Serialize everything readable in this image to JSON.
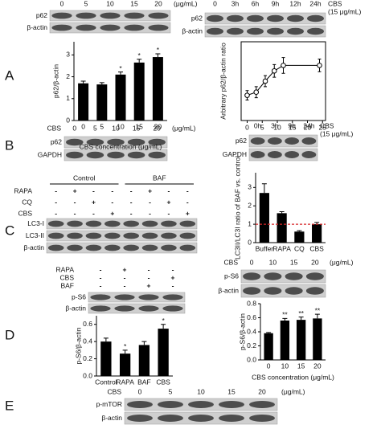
{
  "panel_labels": [
    "A",
    "B",
    "C",
    "D",
    "E"
  ],
  "blots": [
    {
      "lanes": [
        "0",
        "5",
        "10",
        "15",
        "20"
      ],
      "unit": [
        "(μg/mL)"
      ],
      "rows": [
        "p62",
        "β-actin"
      ]
    },
    {
      "lanes": [
        "0",
        "3h",
        "6h",
        "9h",
        "12h",
        "24h"
      ],
      "unit": [
        "CBS",
        "(15 μg/mL)"
      ],
      "rows": [
        "p62",
        "β-actin"
      ]
    },
    {
      "prefix": "CBS",
      "lanes": [
        "0",
        "5",
        "10",
        "15",
        "20"
      ],
      "unit": [
        "(μg/mL)"
      ],
      "rows": [
        "p62",
        "GAPDH"
      ]
    },
    {
      "lanes": [
        "0h",
        "3h",
        "9h",
        "24h"
      ],
      "unit": [
        "CBS",
        "(15 μg/mL)"
      ],
      "rows": [
        "p62",
        "GAPDH"
      ]
    },
    {
      "groups": [
        "Control",
        "BAF"
      ],
      "treatments": [
        {
          "label": "RAPA",
          "cells": [
            "-",
            "+",
            "-",
            "-",
            "-",
            "+",
            "-",
            "-"
          ]
        },
        {
          "label": "CQ",
          "cells": [
            "-",
            "-",
            "+",
            "-",
            "-",
            "-",
            "+",
            "-"
          ]
        },
        {
          "label": "CBS",
          "cells": [
            "-",
            "-",
            "-",
            "+",
            "-",
            "-",
            "-",
            "+"
          ]
        }
      ],
      "rows": [
        "LC3-I",
        "LC3-II",
        "β-actin"
      ]
    },
    {
      "treatments": [
        {
          "label": "RAPA",
          "cells": [
            "-",
            "+",
            "-",
            "-"
          ]
        },
        {
          "label": "CBS",
          "cells": [
            "-",
            "-",
            "-",
            "+"
          ]
        },
        {
          "label": "BAF",
          "cells": [
            "-",
            "-",
            "+",
            "-"
          ]
        }
      ],
      "rows": [
        "p-S6",
        "β-actin"
      ]
    },
    {
      "prefix": "CBS",
      "lanes": [
        "0",
        "10",
        "15",
        "20"
      ],
      "unit": [
        "(μg/mL)"
      ],
      "rows": [
        "p-S6",
        "β-actin"
      ]
    },
    {
      "prefix": "CBS",
      "lanes": [
        "0",
        "5",
        "10",
        "15",
        "20"
      ],
      "unit": [
        "(μg/mL)"
      ],
      "rows": [
        "p-mTOR",
        "β-actin"
      ]
    }
  ],
  "chart_data": [
    {
      "type": "bar",
      "y_label": "p62/β-actin",
      "x_label": "CBS concentration (μg/mL)",
      "categories": [
        "0",
        "5",
        "10",
        "15",
        "20"
      ],
      "values": [
        1.7,
        1.65,
        2.1,
        2.65,
        2.9
      ],
      "errors": [
        0.1,
        0.08,
        0.12,
        0.15,
        0.15
      ],
      "significance": [
        null,
        null,
        "*",
        "*",
        "*"
      ],
      "color": "#000000",
      "ylim": [
        0,
        3.6
      ],
      "yticks": [
        0,
        1,
        2,
        3
      ]
    },
    {
      "type": "line",
      "y_label": "Arbitrary p62/β-actin ratio",
      "x": [
        0,
        3,
        6,
        9,
        12,
        24
      ],
      "values": [
        0.32,
        0.36,
        0.5,
        0.63,
        0.7,
        0.7
      ],
      "errors": [
        0.06,
        0.07,
        0.07,
        0.08,
        0.1,
        0.08
      ],
      "color": "#000000",
      "xlim": [
        -2,
        26
      ],
      "xticks": [
        0,
        5,
        10,
        15,
        20,
        25
      ],
      "ylim": [
        0,
        1
      ]
    },
    {
      "type": "bar",
      "y_label": "LC3II/LC3I ratio of BAF vs. control",
      "categories": [
        "Buffer",
        "RAPA",
        "CQ",
        "CBS"
      ],
      "values": [
        2.7,
        1.6,
        0.6,
        1.0
      ],
      "errors": [
        0.5,
        0.08,
        0.05,
        0.1
      ],
      "reference_line": 1,
      "reference_color": "#d62728",
      "color": "#000000",
      "ylim": [
        0,
        3.8
      ],
      "yticks": [
        0,
        1,
        2,
        3
      ]
    },
    {
      "type": "bar",
      "y_label": "p-S6/β-actin",
      "categories": [
        "Control",
        "RAPA",
        "BAF",
        "CBS"
      ],
      "values": [
        0.4,
        0.26,
        0.36,
        0.55
      ],
      "errors": [
        0.04,
        0.04,
        0.04,
        0.05
      ],
      "significance": [
        null,
        "*",
        null,
        "*"
      ],
      "color": "#000000",
      "ylim": [
        0,
        0.7
      ],
      "yticks": [
        {
          "value": 0,
          "label": "0.0"
        },
        0.2,
        0.4,
        0.6
      ]
    },
    {
      "type": "bar",
      "y_label": "p-S6/β-actin",
      "x_label": "CBS concentration (μg/mL)",
      "categories": [
        "0",
        "10",
        "15",
        "20"
      ],
      "values": [
        0.38,
        0.56,
        0.57,
        0.59
      ],
      "errors": [
        0.01,
        0.03,
        0.04,
        0.06
      ],
      "significance": [
        null,
        "**",
        "**",
        "**"
      ],
      "color": "#000000",
      "ylim": [
        0,
        0.8
      ],
      "yticks": [
        {
          "value": 0,
          "label": "0.0"
        },
        0.2,
        0.4,
        0.6,
        0.8
      ]
    }
  ]
}
